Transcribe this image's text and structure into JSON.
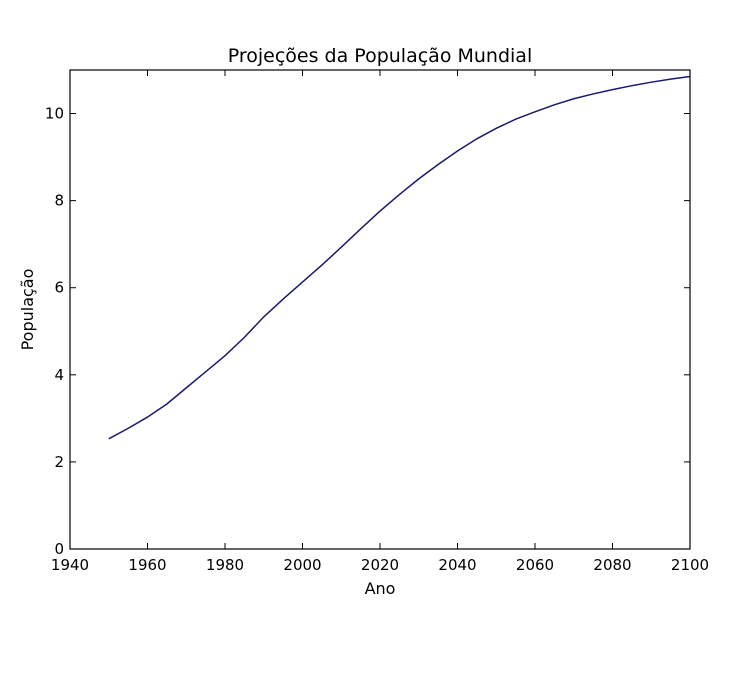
{
  "chart_data": {
    "type": "line",
    "title": "Projeções da População Mundial",
    "xlabel": "Ano",
    "ylabel": "População",
    "xlim": [
      1940,
      2100
    ],
    "ylim": [
      0,
      11
    ],
    "xticks": [
      1940,
      1960,
      1980,
      2000,
      2020,
      2040,
      2060,
      2080,
      2100
    ],
    "yticks": [
      0,
      2,
      4,
      6,
      8,
      10
    ],
    "grid": false,
    "colors": {
      "line": "#191970",
      "axes": "#000000"
    },
    "series": [
      {
        "x": [
          1950,
          1955,
          1960,
          1965,
          1970,
          1975,
          1980,
          1985,
          1990,
          1995,
          2000,
          2005,
          2010,
          2015,
          2020,
          2025,
          2030,
          2035,
          2040,
          2045,
          2050,
          2055,
          2060,
          2065,
          2070,
          2075,
          2080,
          2085,
          2090,
          2095,
          2100
        ],
        "values": [
          2.53,
          2.77,
          3.03,
          3.33,
          3.7,
          4.07,
          4.44,
          4.86,
          5.33,
          5.74,
          6.13,
          6.52,
          6.93,
          7.35,
          7.76,
          8.14,
          8.5,
          8.83,
          9.14,
          9.42,
          9.66,
          9.87,
          10.04,
          10.2,
          10.34,
          10.45,
          10.55,
          10.64,
          10.72,
          10.79,
          10.85
        ]
      }
    ]
  }
}
